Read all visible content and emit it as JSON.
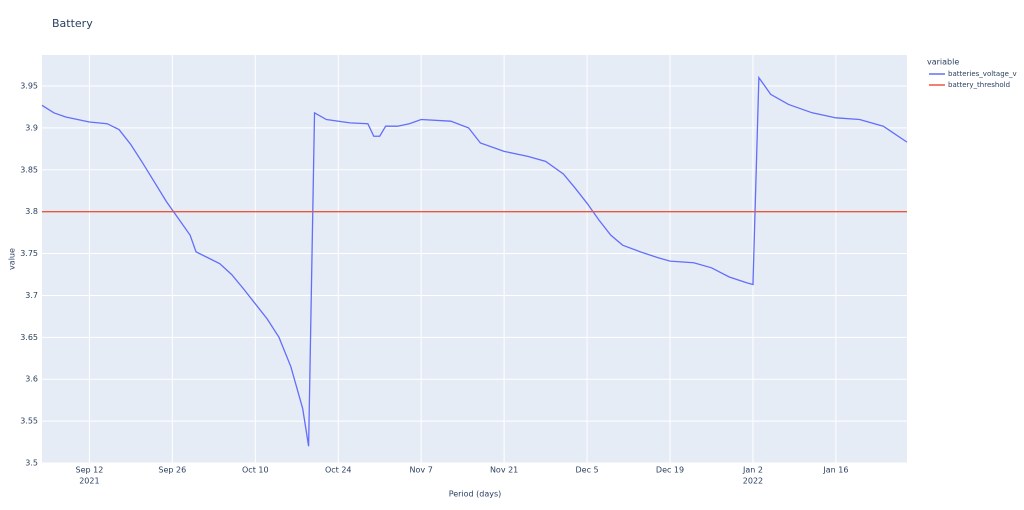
{
  "chart_data": {
    "type": "line",
    "title": "Battery",
    "x_label": "Period (days)",
    "y_label": "value",
    "legend_title": "variable",
    "legend_position": "right",
    "grid": true,
    "xlim": [
      "2021-09-04",
      "2022-01-28"
    ],
    "ylim": [
      3.5,
      3.987
    ],
    "xticks": [
      {
        "value": "2021-09-12",
        "label": "Sep 12",
        "year": "2021"
      },
      {
        "value": "2021-09-26",
        "label": "Sep 26"
      },
      {
        "value": "2021-10-10",
        "label": "Oct 10"
      },
      {
        "value": "2021-10-24",
        "label": "Oct 24"
      },
      {
        "value": "2021-11-07",
        "label": "Nov 7"
      },
      {
        "value": "2021-11-21",
        "label": "Nov 21"
      },
      {
        "value": "2021-12-05",
        "label": "Dec 5"
      },
      {
        "value": "2021-12-19",
        "label": "Dec 19"
      },
      {
        "value": "2022-01-02",
        "label": "Jan 2",
        "year": "2022"
      },
      {
        "value": "2022-01-16",
        "label": "Jan 16"
      }
    ],
    "yticks": [
      3.5,
      3.55,
      3.6,
      3.65,
      3.7,
      3.75,
      3.8,
      3.85,
      3.9,
      3.95
    ],
    "series": [
      {
        "name": "batteries_voltage_v",
        "color": "#636efa",
        "x": [
          "2021-09-04",
          "2021-09-06",
          "2021-09-08",
          "2021-09-12",
          "2021-09-15",
          "2021-09-17",
          "2021-09-19",
          "2021-09-21",
          "2021-09-23",
          "2021-09-25",
          "2021-09-27",
          "2021-09-29",
          "2021-09-30",
          "2021-10-02",
          "2021-10-04",
          "2021-10-06",
          "2021-10-08",
          "2021-10-10",
          "2021-10-12",
          "2021-10-14",
          "2021-10-16",
          "2021-10-18",
          "2021-10-19",
          "2021-10-20",
          "2021-10-22",
          "2021-10-26",
          "2021-10-29",
          "2021-10-30",
          "2021-10-31",
          "2021-11-01",
          "2021-11-03",
          "2021-11-05",
          "2021-11-07",
          "2021-11-12",
          "2021-11-15",
          "2021-11-17",
          "2021-11-21",
          "2021-11-25",
          "2021-11-28",
          "2021-12-01",
          "2021-12-03",
          "2021-12-05",
          "2021-12-07",
          "2021-12-09",
          "2021-12-11",
          "2021-12-14",
          "2021-12-17",
          "2021-12-19",
          "2021-12-23",
          "2021-12-26",
          "2021-12-29",
          "2022-01-01",
          "2022-01-02",
          "2022-01-03",
          "2022-01-05",
          "2022-01-08",
          "2022-01-12",
          "2022-01-16",
          "2022-01-20",
          "2022-01-24",
          "2022-01-28"
        ],
        "values": [
          3.927,
          3.918,
          3.913,
          3.907,
          3.905,
          3.898,
          3.88,
          3.858,
          3.835,
          3.812,
          3.792,
          3.772,
          3.752,
          3.745,
          3.738,
          3.725,
          3.708,
          3.69,
          3.672,
          3.65,
          3.615,
          3.565,
          3.52,
          3.918,
          3.91,
          3.906,
          3.905,
          3.89,
          3.89,
          3.902,
          3.902,
          3.905,
          3.91,
          3.908,
          3.9,
          3.882,
          3.872,
          3.866,
          3.86,
          3.845,
          3.828,
          3.81,
          3.79,
          3.772,
          3.76,
          3.752,
          3.745,
          3.741,
          3.739,
          3.733,
          3.722,
          3.715,
          3.713,
          3.96,
          3.94,
          3.928,
          3.918,
          3.912,
          3.91,
          3.902,
          3.883
        ]
      },
      {
        "name": "battery_threshold",
        "color": "#ef553b",
        "x": [
          "2021-09-04",
          "2022-01-28"
        ],
        "values": [
          3.8,
          3.8
        ]
      }
    ]
  }
}
